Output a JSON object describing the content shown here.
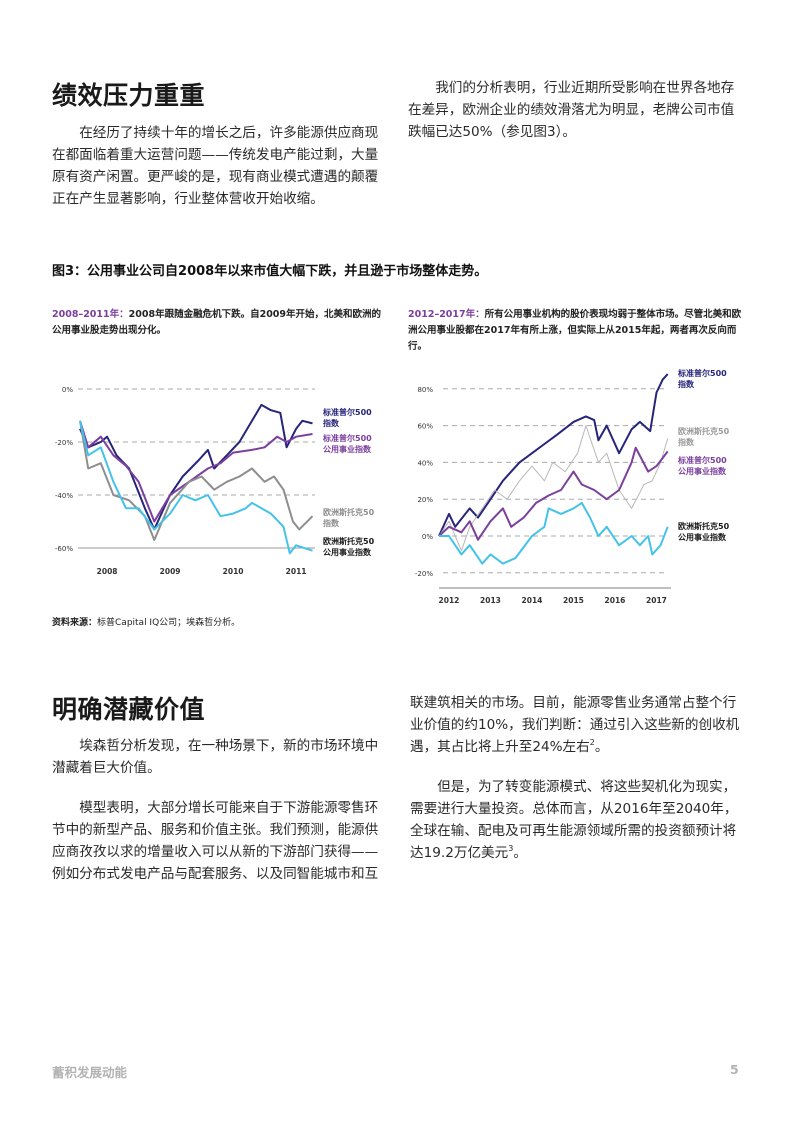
{
  "section1": {
    "heading": "绩效压力重重",
    "left_para": "在经历了持续十年的增长之后，许多能源供应商现在都面临着重大运营问题——传统发电产能过剩，大量原有资产闲置。更严峻的是，现有商业模式遭遇的颠覆正在产生显著影响，行业整体营收开始收缩。",
    "right_para": "我们的分析表明，行业近期所受影响在世界各地存在差异，欧洲企业的绩效滑落尤为明显，老牌公司市值跌幅已达50%（参见图3）。"
  },
  "figure": {
    "title": "图3：公用事业公司自2008年以来市值大幅下跌，并且逊于市场整体走势。",
    "source_label": "资料来源：",
    "source_text": "标普Capital IQ公司；埃森哲分析。"
  },
  "colors": {
    "sp500": "#27257a",
    "sp500_utilities": "#7b3f9e",
    "eurostoxx50": "#8e8e8e",
    "eurostoxx50_chart2": "#b8b8b8",
    "eurostoxx50_utilities": "#43c3ea",
    "caption_highlight": "#7b3f9e"
  },
  "chart_data": [
    {
      "type": "line",
      "caption_period": "2008–2011年：",
      "caption_text": "2008年跟随金融危机下跌。自2009年开始，北美和欧洲的公用事业股走势出现分化。",
      "x_ticks": [
        "2008",
        "2009",
        "2010",
        "2011"
      ],
      "y_ticks": [
        "0%",
        "-20%",
        "-40%",
        "-60%"
      ],
      "y_tick_values": [
        0,
        -20,
        -40,
        -60
      ],
      "ylim": [
        -65,
        0
      ],
      "xlim": [
        2007.57,
        2011.26
      ],
      "grid": "dashed horizontal",
      "legend": "right",
      "series": [
        {
          "key": "sp500",
          "name_line1": "标准普尔500",
          "name_line2": "指数",
          "x": [
            2007.57,
            2007.7,
            2007.9,
            2008.0,
            2008.15,
            2008.35,
            2008.6,
            2008.75,
            2008.9,
            2009.0,
            2009.2,
            2009.45,
            2009.6,
            2009.7,
            2009.9,
            2010.1,
            2010.3,
            2010.45,
            2010.6,
            2010.75,
            2010.85,
            2011.0,
            2011.1,
            2011.26
          ],
          "y": [
            -15,
            -22,
            -20,
            -18,
            -25,
            -30,
            -45,
            -53,
            -45,
            -40,
            -33,
            -27,
            -23,
            -30,
            -25,
            -20,
            -12,
            -6,
            -8,
            -9,
            -22,
            -15,
            -12,
            -13
          ]
        },
        {
          "key": "sp500_utilities",
          "name_line1": "标准普尔500",
          "name_line2": "公用事业指数",
          "x": [
            2007.57,
            2007.7,
            2007.9,
            2008.1,
            2008.3,
            2008.5,
            2008.75,
            2009.0,
            2009.3,
            2009.6,
            2009.8,
            2010.0,
            2010.3,
            2010.5,
            2010.7,
            2010.85,
            2011.0,
            2011.26
          ],
          "y": [
            -12,
            -22,
            -18,
            -25,
            -29,
            -35,
            -50,
            -40,
            -35,
            -30,
            -28,
            -24,
            -23,
            -22,
            -18,
            -20,
            -18,
            -17
          ]
        },
        {
          "key": "eurostoxx50",
          "name_line1": "欧洲斯托克50",
          "name_line2": "指数",
          "x": [
            2007.57,
            2007.7,
            2007.9,
            2008.1,
            2008.35,
            2008.6,
            2008.75,
            2009.0,
            2009.3,
            2009.5,
            2009.7,
            2009.9,
            2010.1,
            2010.3,
            2010.5,
            2010.65,
            2010.8,
            2010.95,
            2011.05,
            2011.26
          ],
          "y": [
            -12,
            -30,
            -28,
            -40,
            -42,
            -48,
            -57,
            -43,
            -35,
            -33,
            -38,
            -35,
            -33,
            -30,
            -35,
            -33,
            -38,
            -50,
            -53,
            -48
          ]
        },
        {
          "key": "eurostoxx50_utilities",
          "name_line1": "欧洲斯托克50",
          "name_line2": "公用事业指数",
          "x": [
            2007.57,
            2007.7,
            2007.9,
            2008.1,
            2008.3,
            2008.5,
            2008.75,
            2009.0,
            2009.2,
            2009.4,
            2009.6,
            2009.8,
            2010.0,
            2010.2,
            2010.3,
            2010.6,
            2010.8,
            2010.9,
            2011.0,
            2011.26
          ],
          "y": [
            -12,
            -25,
            -22,
            -35,
            -45,
            -45,
            -53,
            -47,
            -40,
            -42,
            -40,
            -48,
            -47,
            -45,
            -43,
            -47,
            -52,
            -62,
            -59,
            -61
          ]
        }
      ]
    },
    {
      "type": "line",
      "caption_period": "2012–2017年：",
      "caption_text": "所有公用事业机构的股价表现均弱于整体市场。尽管北美和欧洲公用事业股都在2017年有所上涨，但实际上从2015年起，两者再次反向而行。",
      "x_ticks": [
        "2012",
        "2013",
        "2014",
        "2015",
        "2016",
        "2017"
      ],
      "y_ticks": [
        "80%",
        "60%",
        "40%",
        "20%",
        "0%",
        "-20%"
      ],
      "y_tick_values": [
        80,
        60,
        40,
        20,
        0,
        -20
      ],
      "ylim": [
        -20,
        90
      ],
      "xlim": [
        2011.76,
        2017.27
      ],
      "grid": "dashed horizontal",
      "legend": "right",
      "series": [
        {
          "key": "sp500",
          "name_line1": "标准普尔500",
          "name_line2": "指数",
          "x": [
            2011.76,
            2012.0,
            2012.15,
            2012.5,
            2012.7,
            2013.0,
            2013.3,
            2013.7,
            2014.0,
            2014.3,
            2014.6,
            2015.0,
            2015.3,
            2015.5,
            2015.6,
            2015.8,
            2016.1,
            2016.4,
            2016.6,
            2016.85,
            2017.0,
            2017.15,
            2017.27
          ],
          "y": [
            0,
            12,
            5,
            15,
            10,
            20,
            30,
            40,
            45,
            50,
            55,
            62,
            65,
            63,
            52,
            60,
            45,
            58,
            62,
            57,
            78,
            85,
            88
          ]
        },
        {
          "key": "eurostoxx50_chart2",
          "name_line1": "欧洲斯托克50",
          "name_line2": "指数",
          "x": [
            2011.76,
            2012.0,
            2012.3,
            2012.5,
            2012.8,
            2013.1,
            2013.4,
            2013.7,
            2014.0,
            2014.3,
            2014.5,
            2014.8,
            2015.1,
            2015.3,
            2015.6,
            2015.8,
            2016.1,
            2016.4,
            2016.7,
            2016.9,
            2017.1,
            2017.27
          ],
          "y": [
            0,
            8,
            -8,
            5,
            15,
            25,
            20,
            30,
            38,
            30,
            40,
            35,
            45,
            60,
            40,
            45,
            25,
            15,
            28,
            30,
            40,
            53
          ]
        },
        {
          "key": "sp500_utilities",
          "name_line1": "标准普尔500",
          "name_line2": "公用事业指数",
          "x": [
            2011.76,
            2012.0,
            2012.3,
            2012.5,
            2012.7,
            2013.0,
            2013.3,
            2013.5,
            2013.8,
            2014.1,
            2014.4,
            2014.7,
            2015.0,
            2015.2,
            2015.5,
            2015.8,
            2016.1,
            2016.4,
            2016.5,
            2016.8,
            2017.0,
            2017.27
          ],
          "y": [
            0,
            5,
            2,
            8,
            -2,
            8,
            15,
            5,
            10,
            18,
            22,
            25,
            35,
            28,
            25,
            20,
            25,
            40,
            48,
            35,
            38,
            46
          ]
        },
        {
          "key": "eurostoxx50_utilities",
          "name_line1": "欧洲斯托克50",
          "name_line2": "公用事业指数",
          "x": [
            2011.76,
            2012.0,
            2012.3,
            2012.5,
            2012.8,
            2013.0,
            2013.3,
            2013.6,
            2014.0,
            2014.3,
            2014.4,
            2014.7,
            2015.0,
            2015.2,
            2015.4,
            2015.6,
            2015.8,
            2016.1,
            2016.4,
            2016.6,
            2016.8,
            2016.9,
            2017.1,
            2017.27
          ],
          "y": [
            0,
            0,
            -10,
            -5,
            -15,
            -10,
            -15,
            -12,
            0,
            5,
            15,
            12,
            15,
            18,
            10,
            0,
            5,
            -5,
            0,
            -5,
            0,
            -10,
            -5,
            5
          ]
        }
      ]
    }
  ],
  "section2": {
    "heading": "明确潜藏价值",
    "left_para1": "埃森哲分析发现，在一种场景下，新的市场环境中潜藏着巨大价值。",
    "left_para2": "模型表明，大部分增长可能来自于下游能源零售环节中的新型产品、服务和价值主张。我们预测，能源供应商孜孜以求的增量收入可以从新的下游部门获得——例如分布式发电产品与配套服务、以及同智能城市和互",
    "right_para1_text": "联建筑相关的市场。目前，能源零售业务通常占整个行业价值的约10%，我们判断：通过引入这些新的创收机遇，其占比将上升至24%左右",
    "right_para1_sup": "2",
    "right_para1_tail": "。",
    "right_para2_text": "但是，为了转变能源模式、将这些契机化为现实，需要进行大量投资。总体而言，从2016年至2040年，全球在输、配电及可再生能源领域所需的投资额预计将达19.2万亿美元",
    "right_para2_sup": "3",
    "right_para2_tail": "。"
  },
  "footer": {
    "title": "蓄积发展动能",
    "page_number": "5"
  }
}
